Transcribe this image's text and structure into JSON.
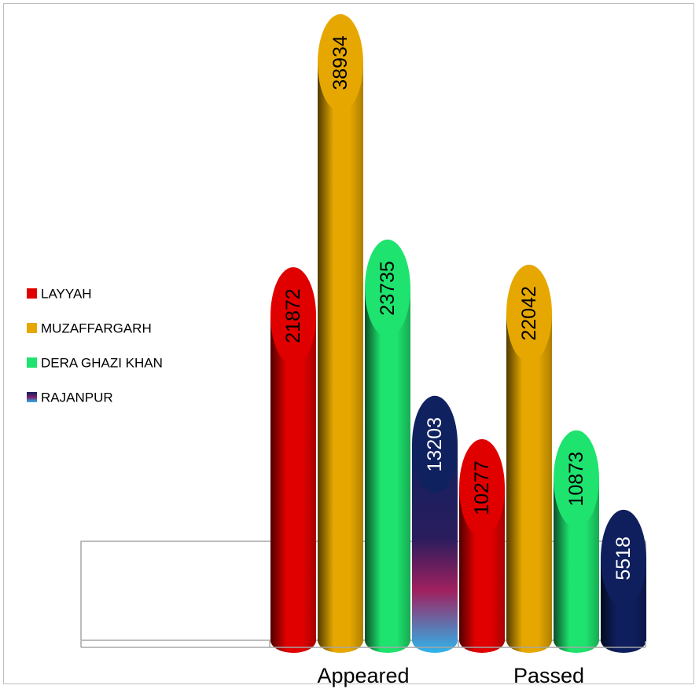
{
  "chart_data": {
    "type": "bar",
    "categories": [
      "Appeared",
      "Passed"
    ],
    "series": [
      {
        "name": "LAYYAH",
        "values": [
          21872,
          10277
        ],
        "color": "#e00000"
      },
      {
        "name": "MUZAFFARGARH",
        "values": [
          38934,
          22042
        ],
        "color": "#e6a800"
      },
      {
        "name": "DERA GHAZI KHAN",
        "values": [
          23735,
          10873
        ],
        "color": "#1ee36e"
      },
      {
        "name": "RAJANPUR",
        "values": [
          13203,
          5518
        ],
        "color": "#0f1f5e"
      }
    ],
    "title": "",
    "xlabel": "",
    "ylabel": "",
    "ylim": [
      0,
      40000
    ],
    "legend": "left",
    "grid": false
  }
}
